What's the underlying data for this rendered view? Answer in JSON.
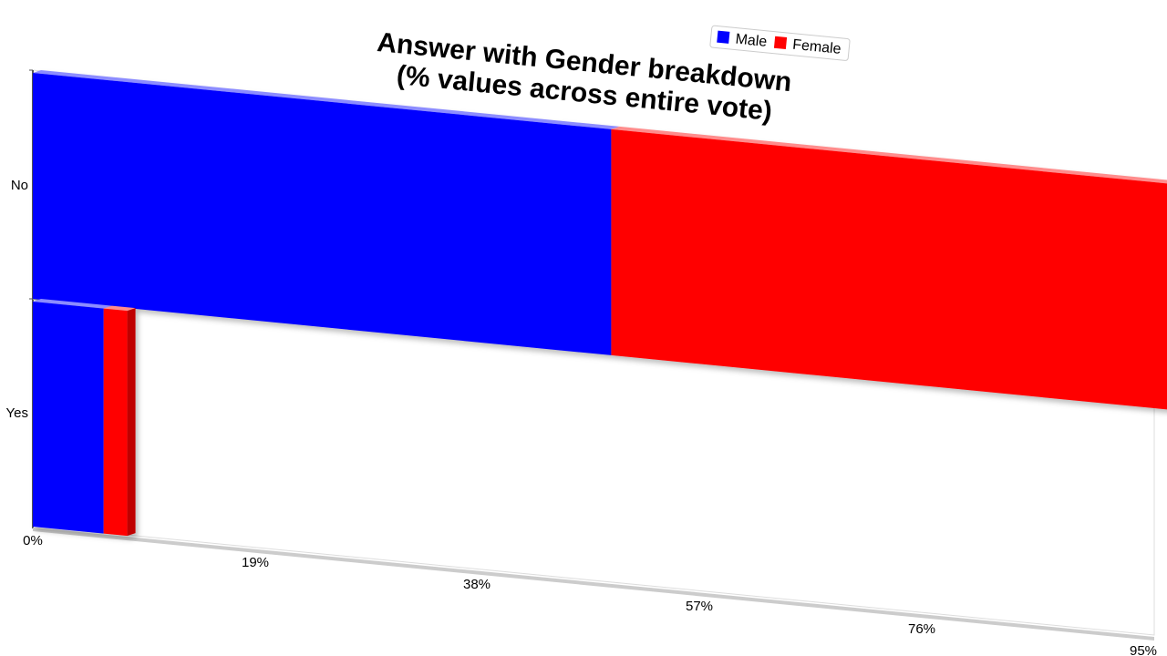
{
  "chart_data": {
    "type": "bar",
    "orientation": "horizontal",
    "stacked": true,
    "projection": "3d-perspective",
    "title_lines": [
      "Answer with Gender breakdown",
      "(% values across entire vote)"
    ],
    "categories": [
      "No",
      "Yes"
    ],
    "series": [
      {
        "name": "Male",
        "color": "#0000ff",
        "values": [
          49,
          6
        ]
      },
      {
        "name": "Female",
        "color": "#ff0000",
        "values": [
          49,
          2
        ]
      }
    ],
    "xlim": [
      0,
      95
    ],
    "x_ticks": [
      "0%",
      "19%",
      "38%",
      "57%",
      "76%",
      "95%"
    ],
    "legend_position": "top-right",
    "grid": false
  }
}
